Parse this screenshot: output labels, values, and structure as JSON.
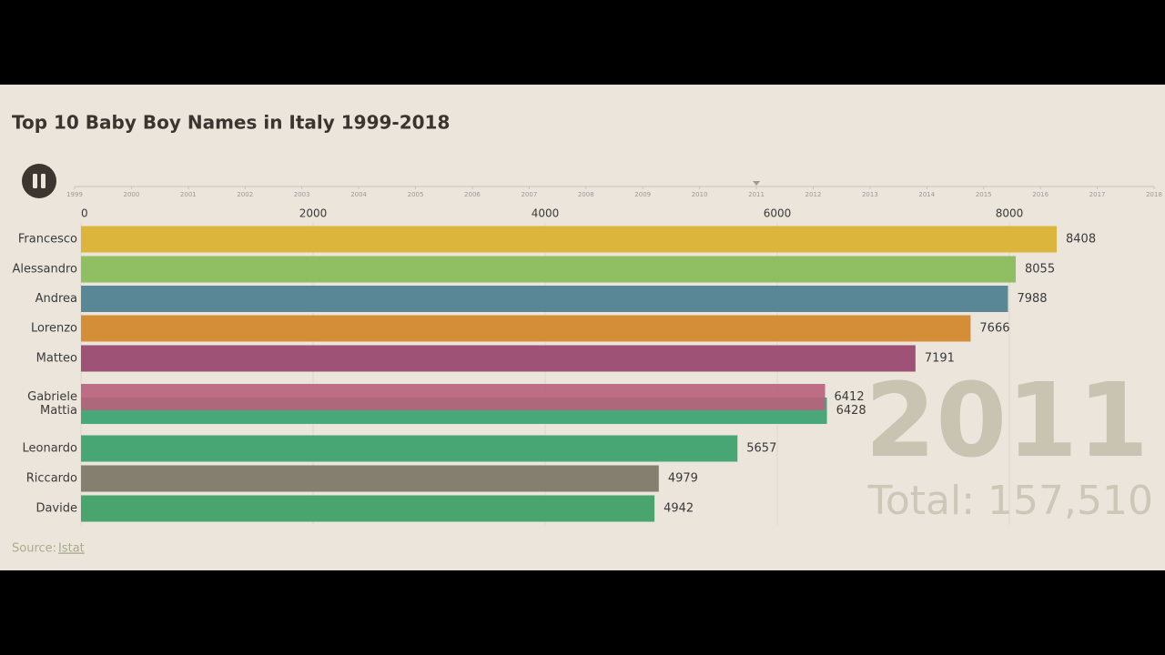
{
  "chart_data": {
    "type": "bar",
    "orientation": "horizontal",
    "title": "Top 10 Baby Boy Names in Italy 1999-2018",
    "categories": [
      "Francesco",
      "Alessandro",
      "Andrea",
      "Lorenzo",
      "Matteo",
      "Gabriele",
      "Mattia",
      "Leonardo",
      "Riccardo",
      "Davide"
    ],
    "values": [
      8408,
      8055,
      7988,
      7666,
      7191,
      6412,
      6428,
      5657,
      4979,
      4942
    ],
    "colors": [
      "#dbb53c",
      "#8fbf62",
      "#5a8796",
      "#d48e38",
      "#9e5276",
      "#b8607c",
      "#48a87a",
      "#48a574",
      "#857f70",
      "#4aa46e"
    ],
    "xlim": [
      0,
      9000
    ],
    "xticks": [
      0,
      2000,
      4000,
      6000,
      8000
    ],
    "grid": true,
    "timeline": {
      "years": [
        1999,
        2000,
        2001,
        2002,
        2003,
        2004,
        2005,
        2006,
        2007,
        2008,
        2009,
        2010,
        2011,
        2012,
        2013,
        2014,
        2015,
        2016,
        2017,
        2018
      ],
      "current": 2011
    },
    "year_label": "2011",
    "total_label": "Total: 157,510",
    "source_prefix": "Source:",
    "source_link": "Istat"
  }
}
